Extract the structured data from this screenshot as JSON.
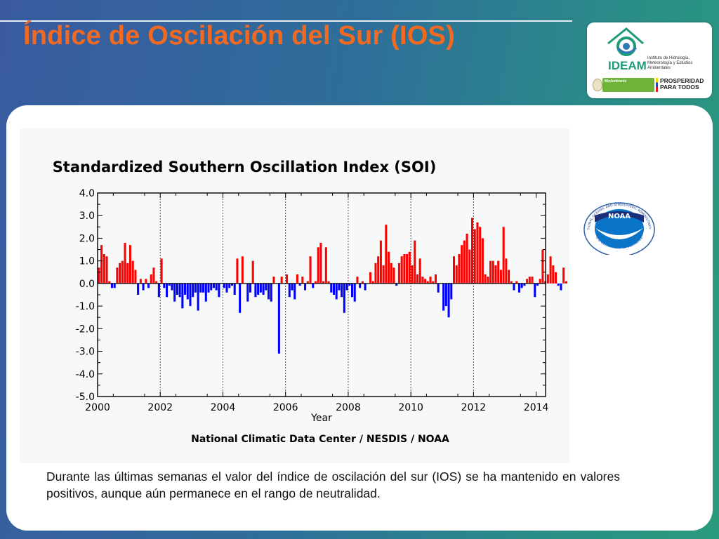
{
  "slide": {
    "title": "Índice de Oscilación del Sur (IOS)",
    "caption": "Durante las últimas semanas el valor del índice de oscilación del sur (IOS) se ha mantenido en valores positivos, aunque aún permanece en el rango de neutralidad.",
    "accent_color": "#f26a21"
  },
  "logos": {
    "ideam_name": "IDEAM",
    "ideam_full": "Instituto de Hidrología, Meteorología y Estudios Ambientales",
    "ministry": "MinAmbiente",
    "prosperity": "PROSPERIDAD PARA TODOS",
    "noaa": "NOAA",
    "noaa_ring_top": "NATIONAL OCEANIC AND ATMOSPHERIC ADMINISTRATION",
    "noaa_ring_bottom": "U.S. DEPARTMENT OF COMMERCE"
  },
  "chart_data": {
    "type": "bar",
    "title": "Standardized Southern Oscillation Index (SOI)",
    "xlabel": "Year",
    "ylabel": "",
    "source": "National Climatic Data Center / NESDIS / NOAA",
    "xlim": [
      2000,
      2014.3
    ],
    "ylim": [
      -5.0,
      4.0
    ],
    "x_ticks": [
      2000,
      2002,
      2004,
      2006,
      2008,
      2010,
      2012,
      2014
    ],
    "y_ticks": [
      "4.0",
      "3.0",
      "2.0",
      "1.0",
      "0.0",
      "-1.0",
      "-2.0",
      "-3.0",
      "-4.0",
      "-5.0"
    ],
    "grid": "dotted vertical lines at 2002, 2004, 2006, 2008, 2010, 2012",
    "colors": {
      "positive": "#ff0000",
      "negative": "#0000ff"
    },
    "start": "2000-01",
    "frequency": "monthly",
    "values": [
      0.7,
      1.7,
      1.3,
      1.2,
      0.1,
      -0.2,
      -0.2,
      0.7,
      0.9,
      1.0,
      1.8,
      0.9,
      1.7,
      1.0,
      0.6,
      -0.5,
      0.2,
      -0.3,
      0.2,
      -0.2,
      0.4,
      0.7,
      0.1,
      -0.6,
      1.1,
      -0.2,
      -0.6,
      -0.1,
      -0.3,
      -0.8,
      -0.5,
      -0.6,
      -1.1,
      -0.5,
      -0.7,
      -1.0,
      -0.6,
      -0.4,
      -1.2,
      -0.4,
      -0.4,
      -0.8,
      -0.4,
      -0.3,
      -0.2,
      -0.3,
      -0.6,
      0.0,
      -0.2,
      -0.4,
      -0.2,
      -0.1,
      -0.5,
      1.1,
      -1.3,
      1.2,
      0.0,
      -0.8,
      -0.4,
      1.0,
      -0.6,
      -0.5,
      -0.4,
      -0.5,
      -0.3,
      -0.7,
      -0.8,
      0.3,
      0.0,
      -3.1,
      0.3,
      0.0,
      0.4,
      -0.6,
      -0.3,
      -0.7,
      0.4,
      -0.1,
      0.3,
      -0.3,
      0.1,
      1.2,
      -0.2,
      0.1,
      1.6,
      1.8,
      0.1,
      1.6,
      0.1,
      -0.4,
      -0.5,
      -0.7,
      -0.3,
      -0.6,
      -1.3,
      -0.3,
      -0.1,
      -0.6,
      -0.8,
      0.3,
      -0.2,
      0.1,
      -0.3,
      0.0,
      0.5,
      0.1,
      0.9,
      1.2,
      1.9,
      0.8,
      2.6,
      1.4,
      0.9,
      0.7,
      -0.1,
      0.9,
      1.2,
      1.3,
      1.3,
      1.4,
      0.8,
      1.9,
      0.4,
      1.1,
      0.3,
      0.2,
      0.1,
      0.3,
      0.1,
      0.4,
      -0.4,
      0.0,
      -1.2,
      -1.0,
      -1.5,
      -0.7,
      1.2,
      0.8,
      1.3,
      1.7,
      1.9,
      2.2,
      1.5,
      2.9,
      2.4,
      2.7,
      2.5,
      2.0,
      0.4,
      0.3,
      1.0,
      1.0,
      0.8,
      1.0,
      0.6,
      2.5,
      1.1,
      0.6,
      0.1,
      -0.3,
      0.1,
      -0.4,
      -0.2,
      -0.1,
      0.2,
      0.3,
      0.3,
      -0.6,
      -0.1,
      0.2,
      1.5,
      0.1,
      0.4,
      1.2,
      0.8,
      0.5,
      -0.1,
      -0.3,
      0.7,
      0.1
    ]
  }
}
